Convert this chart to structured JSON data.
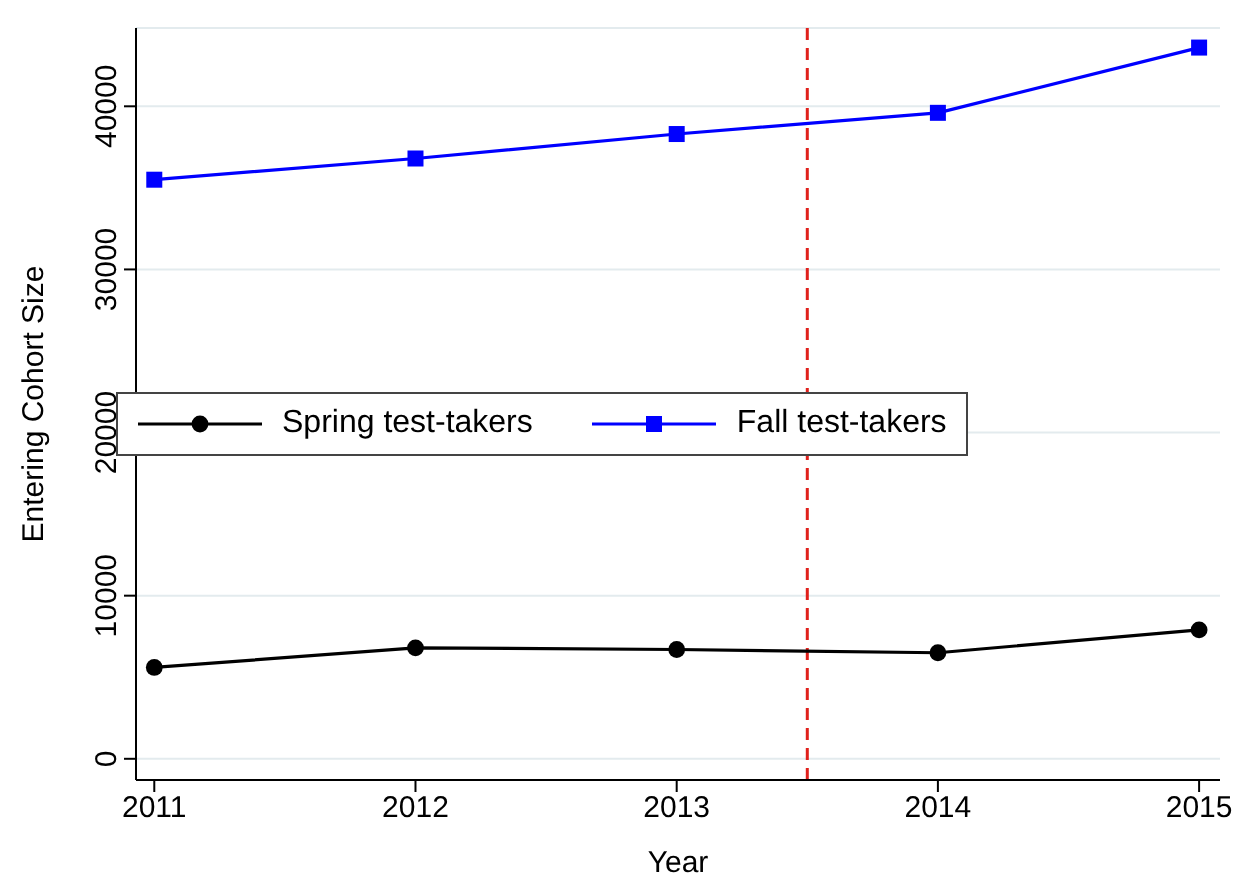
{
  "chart_data": {
    "type": "line",
    "xlabel": "Year",
    "ylabel": "Entering Cohort Size",
    "x": [
      2011,
      2012,
      2013,
      2014,
      2015
    ],
    "series": [
      {
        "name": "Spring test-takers",
        "color": "#000000",
        "marker": "circle",
        "values": [
          5600,
          6800,
          6700,
          6500,
          7900
        ]
      },
      {
        "name": "Fall test-takers",
        "color": "#0000ff",
        "marker": "square",
        "values": [
          35500,
          36800,
          38300,
          39600,
          43600
        ]
      }
    ],
    "xlim": [
      2010.93,
      2015.08
    ],
    "xticks": [
      2011,
      2012,
      2013,
      2014,
      2015
    ],
    "ylim": [
      -1300,
      44800
    ],
    "yticks": [
      0,
      10000,
      20000,
      30000,
      40000
    ],
    "ref_lines": [
      {
        "axis": "x",
        "value": 2013.5,
        "color": "#e0201b",
        "line_style": "dashed"
      }
    ],
    "grid": "y",
    "legend": "left",
    "line_style": "solid"
  }
}
